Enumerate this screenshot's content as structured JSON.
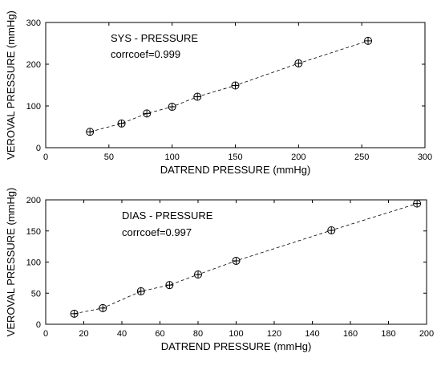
{
  "chart_data": [
    {
      "type": "scatter",
      "title": "",
      "annotations": [
        "SYS - PRESSURE",
        "corrcoef=0.999"
      ],
      "xlabel": "DATREND PRESSURE (mmHg)",
      "ylabel": "VEROVAL PRESSURE (mmHg)",
      "xlim": [
        0,
        300
      ],
      "ylim": [
        0,
        300
      ],
      "xticks": [
        0,
        50,
        100,
        150,
        200,
        250,
        300
      ],
      "yticks": [
        0,
        100,
        200,
        300
      ],
      "grid": false,
      "line_style": "dashed",
      "marker": "circle-plus",
      "x": [
        35,
        60,
        80,
        100,
        120,
        150,
        200,
        255
      ],
      "y": [
        38,
        58,
        82,
        98,
        122,
        149,
        202,
        256
      ]
    },
    {
      "type": "scatter",
      "title": "",
      "annotations": [
        "DIAS - PRESSURE",
        "corrcoef=0.997"
      ],
      "xlabel": "DATREND PRESSURE (mmHg)",
      "ylabel": "VEROVAL PRESSURE (mmHg)",
      "xlim": [
        0,
        200
      ],
      "ylim": [
        0,
        200
      ],
      "xticks": [
        0,
        20,
        40,
        60,
        80,
        100,
        120,
        140,
        160,
        180,
        200
      ],
      "yticks": [
        0,
        50,
        100,
        150,
        200
      ],
      "grid": false,
      "line_style": "dashed",
      "marker": "circle-plus",
      "x": [
        15,
        30,
        50,
        65,
        80,
        100,
        150,
        195
      ],
      "y": [
        17,
        26,
        53,
        63,
        80,
        102,
        151,
        194
      ]
    }
  ]
}
